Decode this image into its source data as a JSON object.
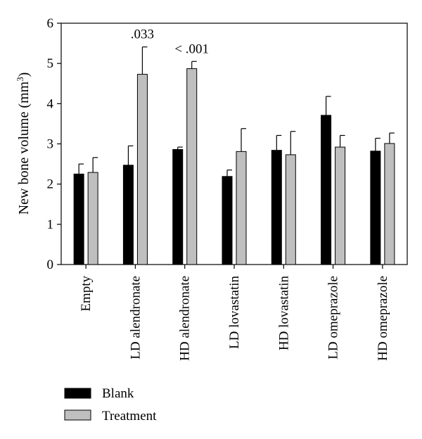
{
  "chart_data": {
    "type": "bar",
    "ylabel": "New bone volume (mm",
    "ylabel_sup": "3",
    "ylabel_close": ")",
    "ylim": [
      0,
      6
    ],
    "yticks": [
      "0",
      "1",
      "2",
      "3",
      "4",
      "5",
      "6"
    ],
    "categories": [
      "Empty",
      "LD alendronate",
      "HD alendronate",
      "LD lovastatin",
      "HD lovastatin",
      "LD omeprazole",
      "HD omeprazole"
    ],
    "series": [
      {
        "name": "Blank",
        "color": "#000000",
        "values": [
          2.25,
          2.47,
          2.86,
          2.19,
          2.84,
          3.71,
          2.82
        ],
        "errors": [
          0.25,
          0.48,
          0.06,
          0.16,
          0.37,
          0.47,
          0.32
        ]
      },
      {
        "name": "Treatment",
        "color": "#bfbfbf",
        "values": [
          2.29,
          4.73,
          4.87,
          2.81,
          2.73,
          2.92,
          3.01
        ],
        "errors": [
          0.37,
          0.68,
          0.18,
          0.57,
          0.58,
          0.29,
          0.26
        ]
      }
    ],
    "annotations": [
      {
        "category_index": 1,
        "text": ".033"
      },
      {
        "category_index": 2,
        "text": "< .001"
      }
    ],
    "legend": {
      "placement": "bottom-left"
    }
  }
}
